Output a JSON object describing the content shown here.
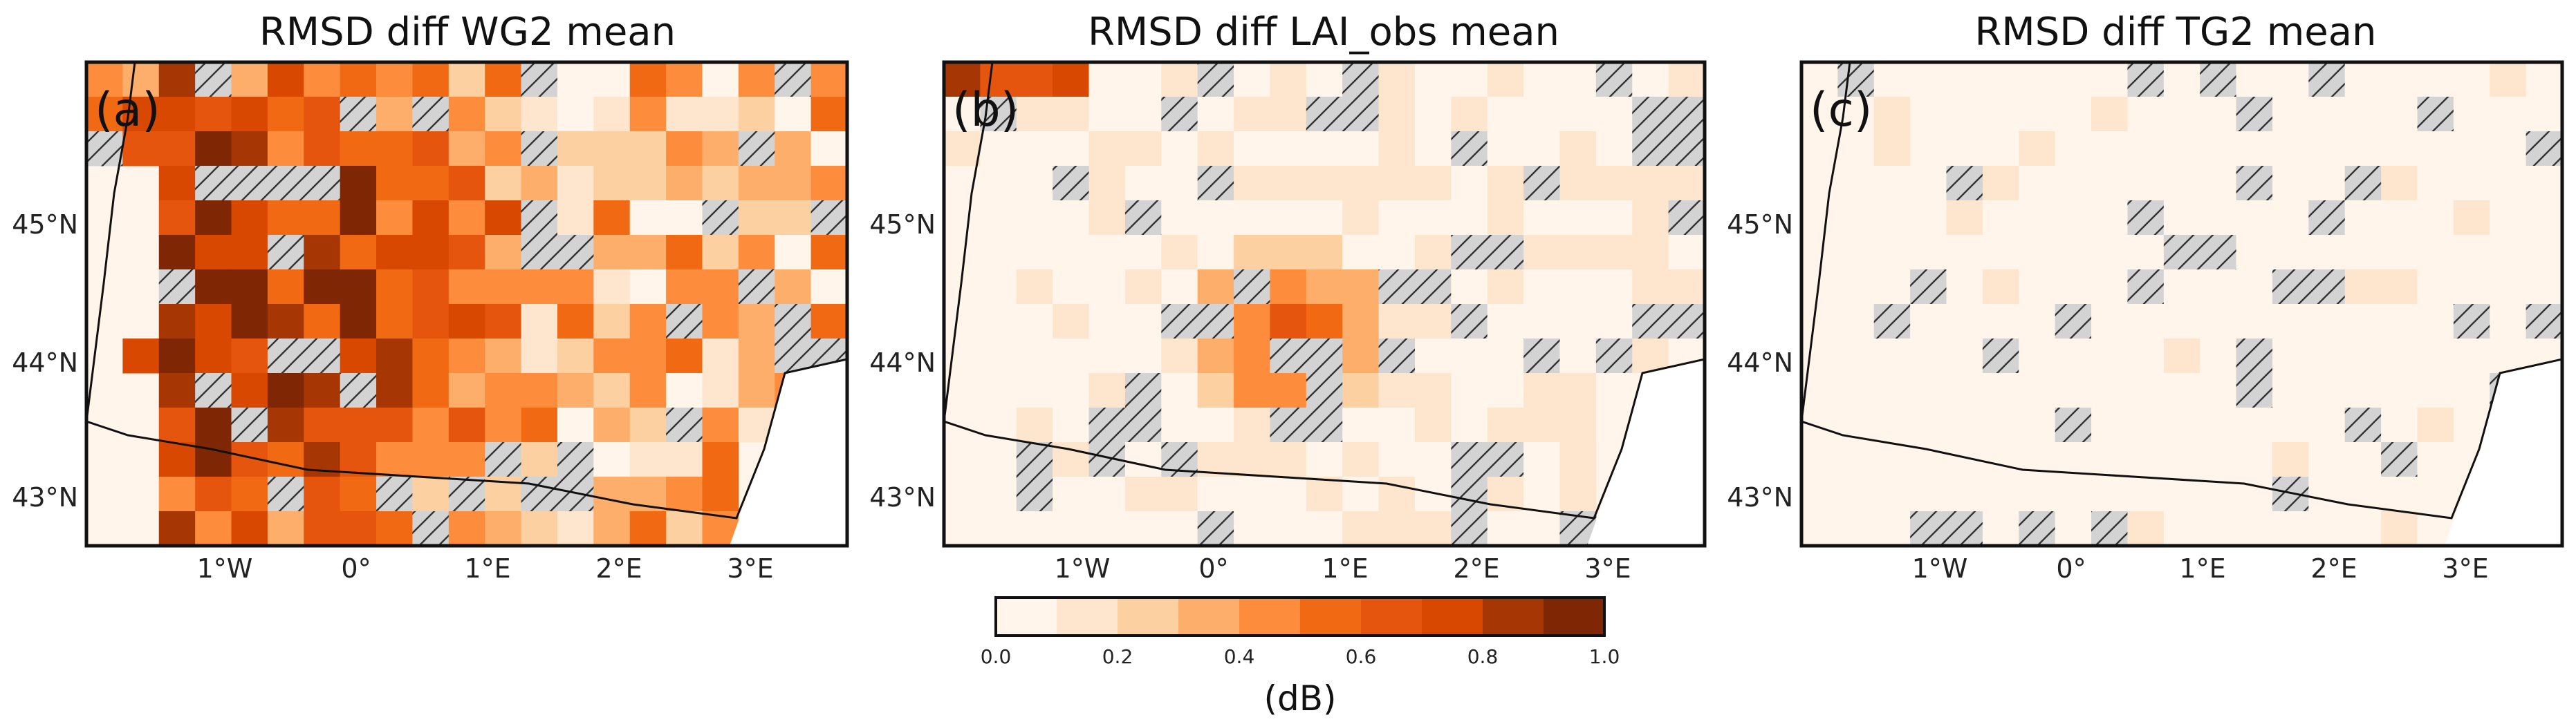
{
  "panels": [
    {
      "id": "a",
      "title": "RMSD diff WG2 mean",
      "label": "(a)",
      "intensity": 1.0,
      "seed": 11
    },
    {
      "id": "b",
      "title": "RMSD diff LAI_obs mean",
      "label": "(b)",
      "intensity": 0.45,
      "seed": 29
    },
    {
      "id": "c",
      "title": "RMSD diff TG2 mean",
      "label": "(c)",
      "intensity": 0.12,
      "seed": 47
    }
  ],
  "lat_ticks": [
    "45°N",
    "44°N",
    "43°N"
  ],
  "lon_ticks": [
    "1°W",
    "0°",
    "1°E",
    "2°E",
    "3°E"
  ],
  "colorbar": {
    "label": "(dB)",
    "tick_labels": [
      "0.0",
      "0.2",
      "0.4",
      "0.6",
      "0.8",
      "1.0"
    ],
    "min": 0.0,
    "max": 1.0,
    "colors": [
      "#fff5eb",
      "#fee6ce",
      "#fdd0a2",
      "#fdae6b",
      "#fd8d3c",
      "#f16913",
      "#e6550d",
      "#d94801",
      "#a63603",
      "#7f2704"
    ]
  }
}
